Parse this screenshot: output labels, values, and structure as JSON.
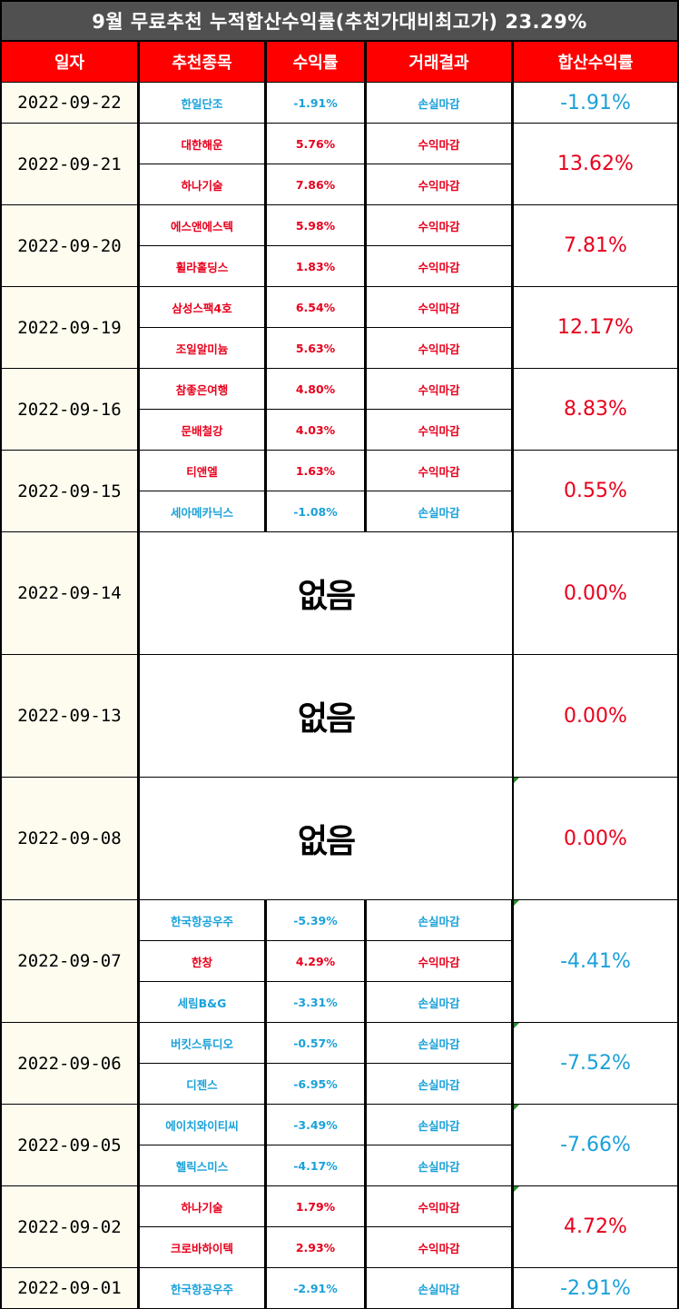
{
  "title": "9월 무료추천 누적합산수익률(추천가대비최고가) 23.29%",
  "headers": [
    "일자",
    "추천종목",
    "수익률",
    "거래결과",
    "합산수익률"
  ],
  "empty_label": "없음",
  "groups": [
    {
      "date": "2022-09-22",
      "total": "-1.91%",
      "items": [
        {
          "stock": "한일단조",
          "ret": "-1.91%",
          "result": "손실마감"
        }
      ]
    },
    {
      "date": "2022-09-21",
      "total": "13.62%",
      "items": [
        {
          "stock": "대한해운",
          "ret": "5.76%",
          "result": "수익마감"
        },
        {
          "stock": "하나기술",
          "ret": "7.86%",
          "result": "수익마감"
        }
      ]
    },
    {
      "date": "2022-09-20",
      "total": "7.81%",
      "items": [
        {
          "stock": "에스앤에스텍",
          "ret": "5.98%",
          "result": "수익마감"
        },
        {
          "stock": "휠라홀딩스",
          "ret": "1.83%",
          "result": "수익마감"
        }
      ]
    },
    {
      "date": "2022-09-19",
      "total": "12.17%",
      "items": [
        {
          "stock": "삼성스팩4호",
          "ret": "6.54%",
          "result": "수익마감"
        },
        {
          "stock": "조일알미늄",
          "ret": "5.63%",
          "result": "수익마감"
        }
      ]
    },
    {
      "date": "2022-09-16",
      "total": "8.83%",
      "items": [
        {
          "stock": "참좋은여행",
          "ret": "4.80%",
          "result": "수익마감"
        },
        {
          "stock": "문배철강",
          "ret": "4.03%",
          "result": "수익마감"
        }
      ]
    },
    {
      "date": "2022-09-15",
      "total": "0.55%",
      "items": [
        {
          "stock": "티앤엘",
          "ret": "1.63%",
          "result": "수익마감"
        },
        {
          "stock": "세아메카닉스",
          "ret": "-1.08%",
          "result": "손실마감"
        }
      ]
    },
    {
      "date": "2022-09-14",
      "total": "0.00%",
      "items": []
    },
    {
      "date": "2022-09-13",
      "total": "0.00%",
      "items": []
    },
    {
      "date": "2022-09-08",
      "total": "0.00%",
      "items": []
    },
    {
      "date": "2022-09-07",
      "total": "-4.41%",
      "items": [
        {
          "stock": "한국항공우주",
          "ret": "-5.39%",
          "result": "손실마감"
        },
        {
          "stock": "한창",
          "ret": "4.29%",
          "result": "수익마감"
        },
        {
          "stock": "세림B&G",
          "ret": "-3.31%",
          "result": "손실마감"
        }
      ]
    },
    {
      "date": "2022-09-06",
      "total": "-7.52%",
      "items": [
        {
          "stock": "버킷스튜디오",
          "ret": "-0.57%",
          "result": "손실마감"
        },
        {
          "stock": "디젠스",
          "ret": "-6.95%",
          "result": "손실마감"
        }
      ]
    },
    {
      "date": "2022-09-05",
      "total": "-7.66%",
      "items": [
        {
          "stock": "에이치와이티씨",
          "ret": "-3.49%",
          "result": "손실마감"
        },
        {
          "stock": "헬릭스미스",
          "ret": "-4.17%",
          "result": "손실마감"
        }
      ]
    },
    {
      "date": "2022-09-02",
      "total": "4.72%",
      "items": [
        {
          "stock": "하나기술",
          "ret": "1.79%",
          "result": "수익마감"
        },
        {
          "stock": "크로바하이텍",
          "ret": "2.93%",
          "result": "수익마감"
        }
      ]
    },
    {
      "date": "2022-09-01",
      "total": "-2.91%",
      "items": [
        {
          "stock": "한국항공우주",
          "ret": "-2.91%",
          "result": "손실마감"
        }
      ]
    }
  ],
  "colors": {
    "positive": "#e8001c",
    "negative": "#1aa1d9",
    "header_bg": "#ff0000",
    "title_bg": "#505050",
    "date_bg": "#fdfcee"
  }
}
